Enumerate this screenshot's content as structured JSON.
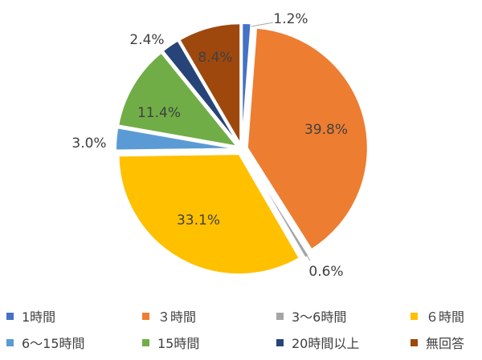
{
  "chart_data": {
    "type": "pie",
    "title": "",
    "slices": [
      {
        "label": "1時間",
        "value": 1.2,
        "display": "1.2%",
        "color": "#4472C4"
      },
      {
        "label": "３時間",
        "value": 39.8,
        "display": "39.8%",
        "color": "#ED7D31"
      },
      {
        "label": "3～6時間",
        "value": 0.6,
        "display": "0.6%",
        "color": "#A5A5A5"
      },
      {
        "label": "６時間",
        "value": 33.1,
        "display": "33.1%",
        "color": "#FFC000"
      },
      {
        "label": "6～15時間",
        "value": 3.0,
        "display": "3.0%",
        "color": "#5B9BD5"
      },
      {
        "label": "15時間",
        "value": 11.4,
        "display": "11.4%",
        "color": "#70AD47"
      },
      {
        "label": "20時間以上",
        "value": 2.4,
        "display": "2.4%",
        "color": "#264478"
      },
      {
        "label": "無回答",
        "value": 8.4,
        "display": "8.4%",
        "color": "#9E480E"
      }
    ],
    "legend_position": "bottom"
  }
}
